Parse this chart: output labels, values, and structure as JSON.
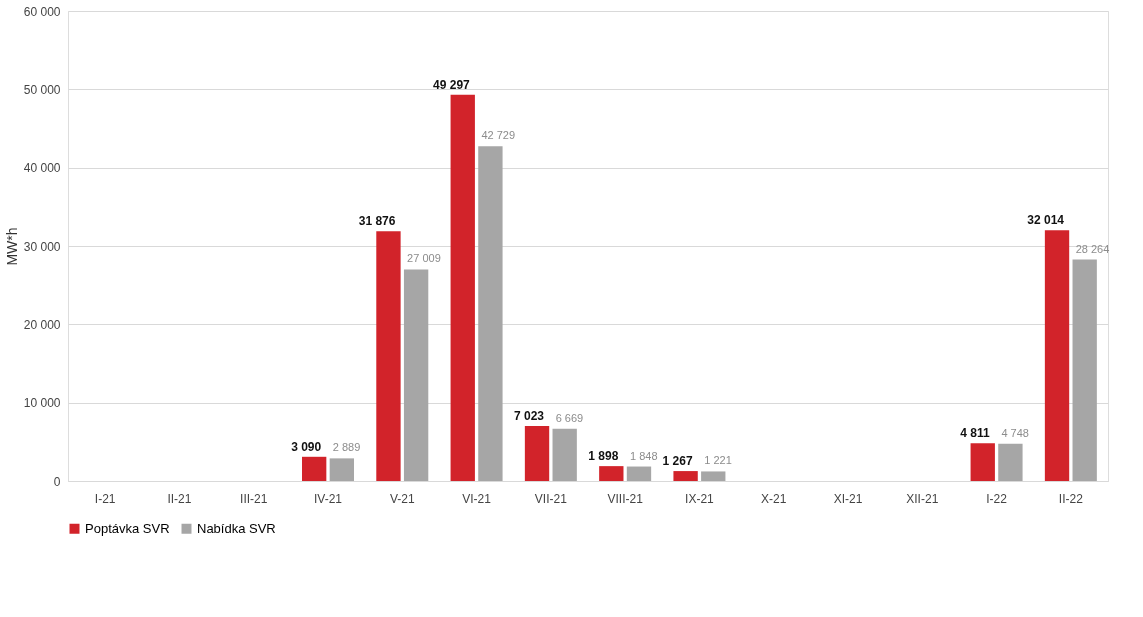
{
  "chart_data": {
    "type": "bar",
    "ylabel": "MW*h",
    "categories": [
      "I-21",
      "II-21",
      "III-21",
      "IV-21",
      "V-21",
      "VI-21",
      "VII-21",
      "VIII-21",
      "IX-21",
      "X-21",
      "XI-21",
      "XII-21",
      "I-22",
      "II-22"
    ],
    "series": [
      {
        "name": "Poptávka SVR",
        "color": "#d2232a",
        "values": [
          null,
          null,
          null,
          3090,
          31876,
          49297,
          7023,
          1898,
          1267,
          null,
          null,
          null,
          4811,
          32014
        ],
        "value_labels": [
          null,
          null,
          null,
          "3 090",
          "31 876",
          "49 297",
          "7 023",
          "1 898",
          "1 267",
          null,
          null,
          null,
          "4 811",
          "32 014"
        ]
      },
      {
        "name": "Nabídka SVR",
        "color": "#a6a6a6",
        "values": [
          null,
          null,
          null,
          2889,
          27009,
          42729,
          6669,
          1848,
          1221,
          null,
          null,
          null,
          4748,
          28264
        ],
        "value_labels": [
          null,
          null,
          null,
          "2 889",
          "27 009",
          "42 729",
          "6 669",
          "1 848",
          "1 221",
          null,
          null,
          null,
          "4 748",
          "28 264"
        ]
      }
    ],
    "ylim": [
      0,
      60000
    ],
    "yticks": [
      0,
      {
        "value": 10000,
        "label": "10 000"
      },
      {
        "value": 20000,
        "label": "20 000"
      },
      {
        "value": 30000,
        "label": "30 000"
      },
      {
        "value": 40000,
        "label": "40 000"
      },
      {
        "value": 50000,
        "label": "50 000"
      },
      {
        "value": 60000,
        "label": "60 000"
      }
    ],
    "grid": "y",
    "legend": "bottom"
  }
}
